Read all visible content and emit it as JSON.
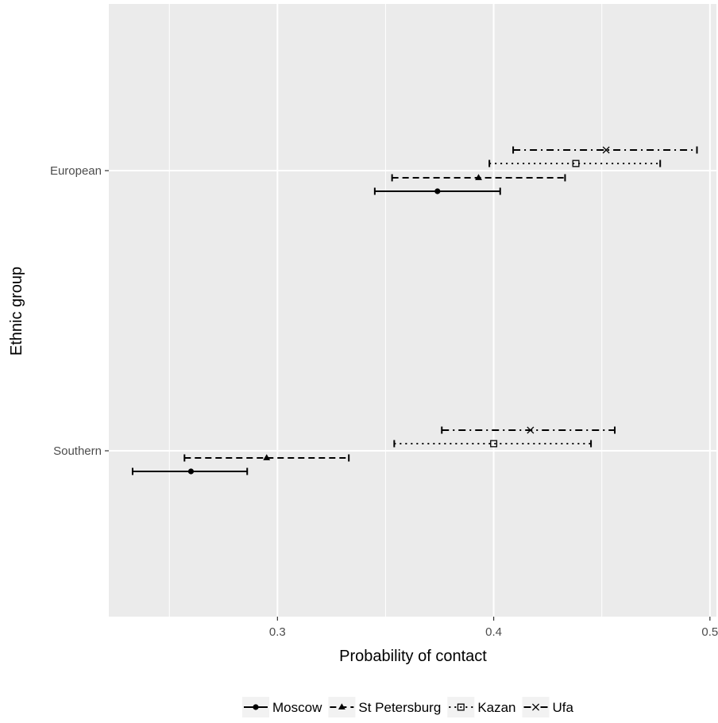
{
  "chart_data": {
    "type": "scatter",
    "subtype": "point-range (error bars)",
    "xlabel": "Probability of contact",
    "ylabel": "Ethnic group",
    "xlim": [
      0.222,
      0.503
    ],
    "x_ticks": [
      0.3,
      0.4,
      0.5
    ],
    "x_tick_labels": [
      "0.3",
      "0.4",
      "0.5"
    ],
    "categories": [
      "European",
      "Southern"
    ],
    "grid": true,
    "panel_background": "#ebebeb",
    "legend_position": "bottom",
    "series": [
      {
        "name": "Moscow",
        "marker": "filled-circle",
        "linestyle": "solid",
        "points": [
          {
            "group": "European",
            "x": 0.374,
            "low": 0.345,
            "high": 0.403
          },
          {
            "group": "Southern",
            "x": 0.26,
            "low": 0.233,
            "high": 0.286
          }
        ]
      },
      {
        "name": "St Petersburg",
        "marker": "filled-triangle",
        "linestyle": "dashed",
        "points": [
          {
            "group": "European",
            "x": 0.393,
            "low": 0.353,
            "high": 0.433
          },
          {
            "group": "Southern",
            "x": 0.295,
            "low": 0.257,
            "high": 0.333
          }
        ]
      },
      {
        "name": "Kazan",
        "marker": "open-square",
        "linestyle": "dotted",
        "points": [
          {
            "group": "European",
            "x": 0.438,
            "low": 0.398,
            "high": 0.477
          },
          {
            "group": "Southern",
            "x": 0.4,
            "low": 0.354,
            "high": 0.445
          }
        ]
      },
      {
        "name": "Ufa",
        "marker": "x-cross",
        "linestyle": "dashdot",
        "points": [
          {
            "group": "European",
            "x": 0.452,
            "low": 0.409,
            "high": 0.494
          },
          {
            "group": "Southern",
            "x": 0.417,
            "low": 0.376,
            "high": 0.456
          }
        ]
      }
    ],
    "colors": {
      "line": "#000000",
      "grid": "#ffffff",
      "tick_text": "#4d4d4d"
    }
  }
}
